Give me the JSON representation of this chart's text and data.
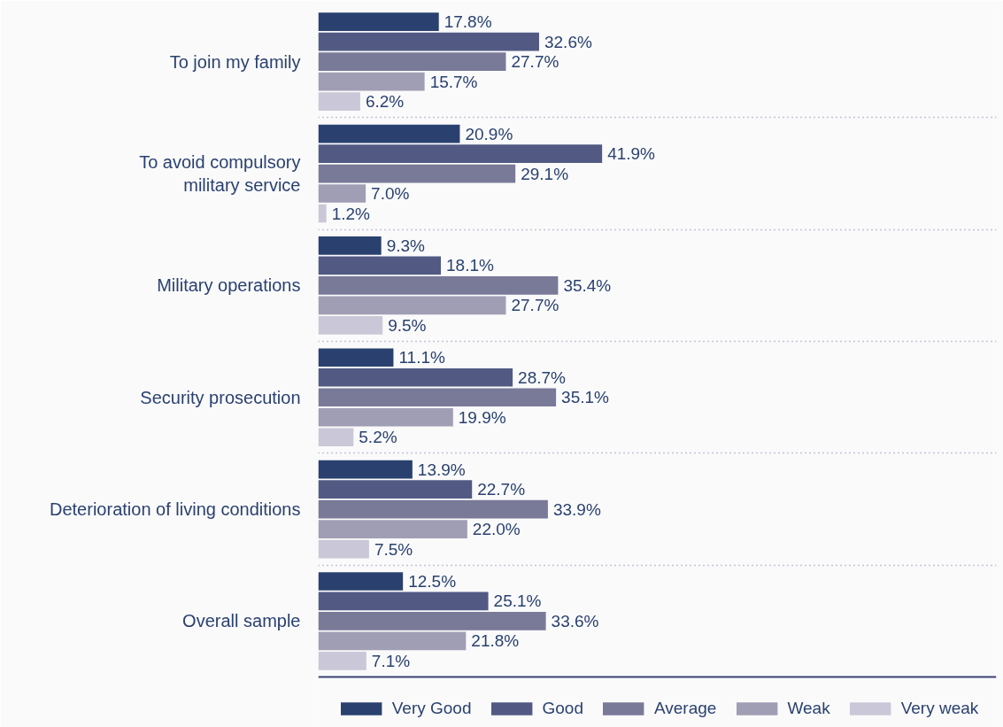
{
  "chart_data": {
    "type": "bar",
    "orientation": "horizontal",
    "categories": [
      "To join my family",
      "To avoid compulsory military service",
      "Military operations",
      "Security prosecution",
      "Deterioration of living conditions",
      "Overall sample"
    ],
    "series": [
      {
        "name": "Very Good",
        "color": "#2a416f",
        "values": [
          17.8,
          20.9,
          9.3,
          11.1,
          13.9,
          12.5
        ],
        "value_labels": [
          "17.8%",
          "20.9%",
          "9.3%",
          "11.1%",
          "13.9%",
          "12.5%"
        ]
      },
      {
        "name": "Good",
        "color": "#525a84",
        "values": [
          32.6,
          41.9,
          18.1,
          28.7,
          22.7,
          25.1
        ],
        "value_labels": [
          "32.6%",
          "41.9%",
          "18.1%",
          "28.7%",
          "22.7%",
          "25.1%"
        ]
      },
      {
        "name": "Average",
        "color": "#797998",
        "values": [
          27.7,
          29.1,
          35.4,
          35.1,
          33.9,
          33.6
        ],
        "value_labels": [
          "27.7%",
          "29.1%",
          "35.4%",
          "35.1%",
          "33.9%",
          "33.6%"
        ]
      },
      {
        "name": "Weak",
        "color": "#a09eb4",
        "values": [
          15.7,
          7.0,
          27.7,
          19.9,
          22.0,
          21.8
        ],
        "value_labels": [
          "15.7%",
          "7.0%",
          "27.7%",
          "19.9%",
          "22.0%",
          "21.8%"
        ]
      },
      {
        "name": "Very weak",
        "color": "#cac8d8",
        "values": [
          6.2,
          1.2,
          9.5,
          5.2,
          7.5,
          7.1
        ],
        "value_labels": [
          "6.2%",
          "1.2%",
          "9.5%",
          "5.2%",
          "7.5%",
          "7.1%"
        ]
      }
    ],
    "grid": "y",
    "legend": "bottom"
  }
}
